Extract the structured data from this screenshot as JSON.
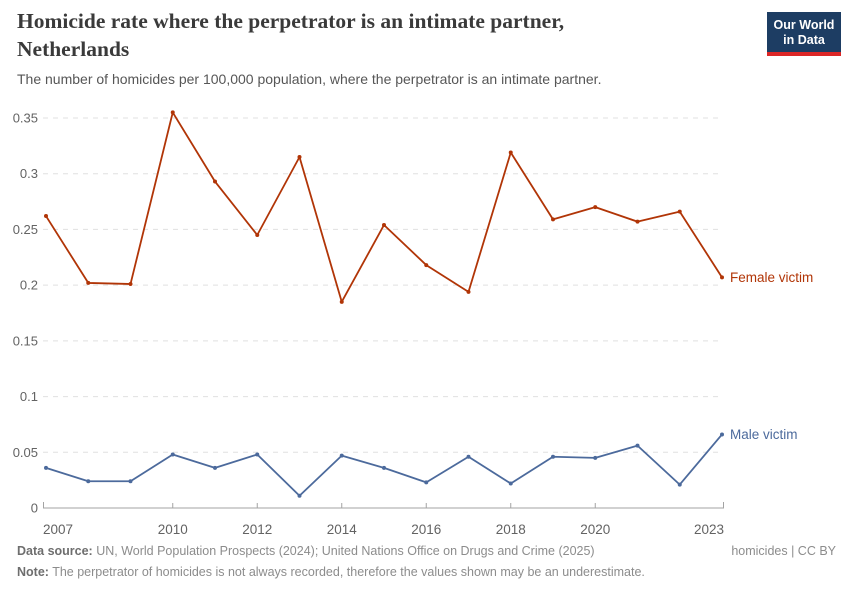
{
  "header": {
    "title_line1": "Homicide rate where the perpetrator is an intimate partner,",
    "title_line2": "Netherlands",
    "subtitle": "The number of homicides per 100,000 population, where the perpetrator is an intimate partner.",
    "logo": {
      "line1": "Our World",
      "line2": "in Data",
      "bg_color": "#1d3d63",
      "accent_color": "#dc2626"
    }
  },
  "chart_data": {
    "type": "line",
    "x": [
      2007,
      2008,
      2009,
      2010,
      2011,
      2012,
      2013,
      2014,
      2015,
      2016,
      2017,
      2018,
      2019,
      2020,
      2021,
      2022,
      2023
    ],
    "series": [
      {
        "name": "Female victim",
        "color": "#b13507",
        "values": [
          0.262,
          0.202,
          0.201,
          0.355,
          0.293,
          0.245,
          0.315,
          0.185,
          0.254,
          0.218,
          0.194,
          0.319,
          0.259,
          0.27,
          0.257,
          0.266,
          0.207
        ]
      },
      {
        "name": "Male victim",
        "color": "#4c6a9c",
        "values": [
          0.036,
          0.024,
          0.024,
          0.048,
          0.036,
          0.048,
          0.011,
          0.047,
          0.036,
          0.023,
          0.046,
          0.022,
          0.046,
          0.045,
          0.056,
          0.021,
          0.066
        ]
      }
    ],
    "ylim": [
      0,
      0.35
    ],
    "yticks": [
      0,
      0.05,
      0.1,
      0.15,
      0.2,
      0.25,
      0.3,
      0.35
    ],
    "ytick_labels": [
      "0",
      "0.05",
      "0.1",
      "0.15",
      "0.2",
      "0.25",
      "0.3",
      "0.35"
    ],
    "xticks": [
      2007,
      2010,
      2012,
      2014,
      2016,
      2018,
      2020,
      2023
    ],
    "grid": "horizontal-dashed",
    "legend_position": "line-end-labels",
    "grid_color": "#e0e0e0",
    "axis_color": "#a3a3a3",
    "tick_text_color": "#636363"
  },
  "footer": {
    "source_label": "Data source:",
    "source_text": " UN, World Population Prospects (2024); United Nations Office on Drugs and Crime (2025)",
    "note_label": "Note:",
    "note_text": " The perpetrator of homicides is not always recorded, therefore the values shown may be an underestimate.",
    "license": "homicides | CC BY"
  }
}
